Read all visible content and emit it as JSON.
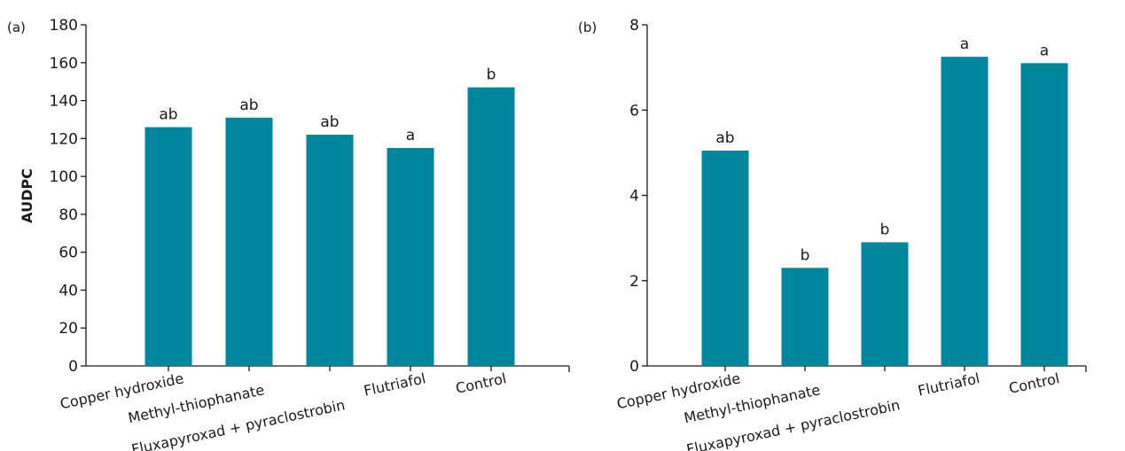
{
  "chart_data": [
    {
      "type": "bar",
      "panel_label": "(a)",
      "title": "",
      "xlabel": "",
      "ylabel": "AUDPC",
      "ylim": [
        0,
        180
      ],
      "yticks": [
        0,
        20,
        40,
        60,
        80,
        100,
        120,
        140,
        160,
        180
      ],
      "categories": [
        "Copper hydroxide",
        "Methyl-thiophanate",
        "Fluxapyroxad + pyraclostrobin",
        "Flutriafol",
        "Control"
      ],
      "values": [
        126,
        131,
        122,
        115,
        147
      ],
      "data_labels": [
        "ab",
        "ab",
        "ab",
        "a",
        "b"
      ],
      "bar_color": "#00879E",
      "grid": false
    },
    {
      "type": "bar",
      "panel_label": "(b)",
      "title": "",
      "xlabel": "",
      "ylabel": "",
      "ylim": [
        0,
        8
      ],
      "yticks": [
        0,
        2,
        4,
        6,
        8
      ],
      "categories": [
        "Copper hydroxide",
        "Methyl-thiophanate",
        "Fluxapyroxad + pyraclostrobin",
        "Flutriafol",
        "Control"
      ],
      "values": [
        5.05,
        2.3,
        2.9,
        7.25,
        7.1
      ],
      "data_labels": [
        "ab",
        "b",
        "b",
        "a",
        "a"
      ],
      "bar_color": "#00879E",
      "grid": false
    }
  ]
}
